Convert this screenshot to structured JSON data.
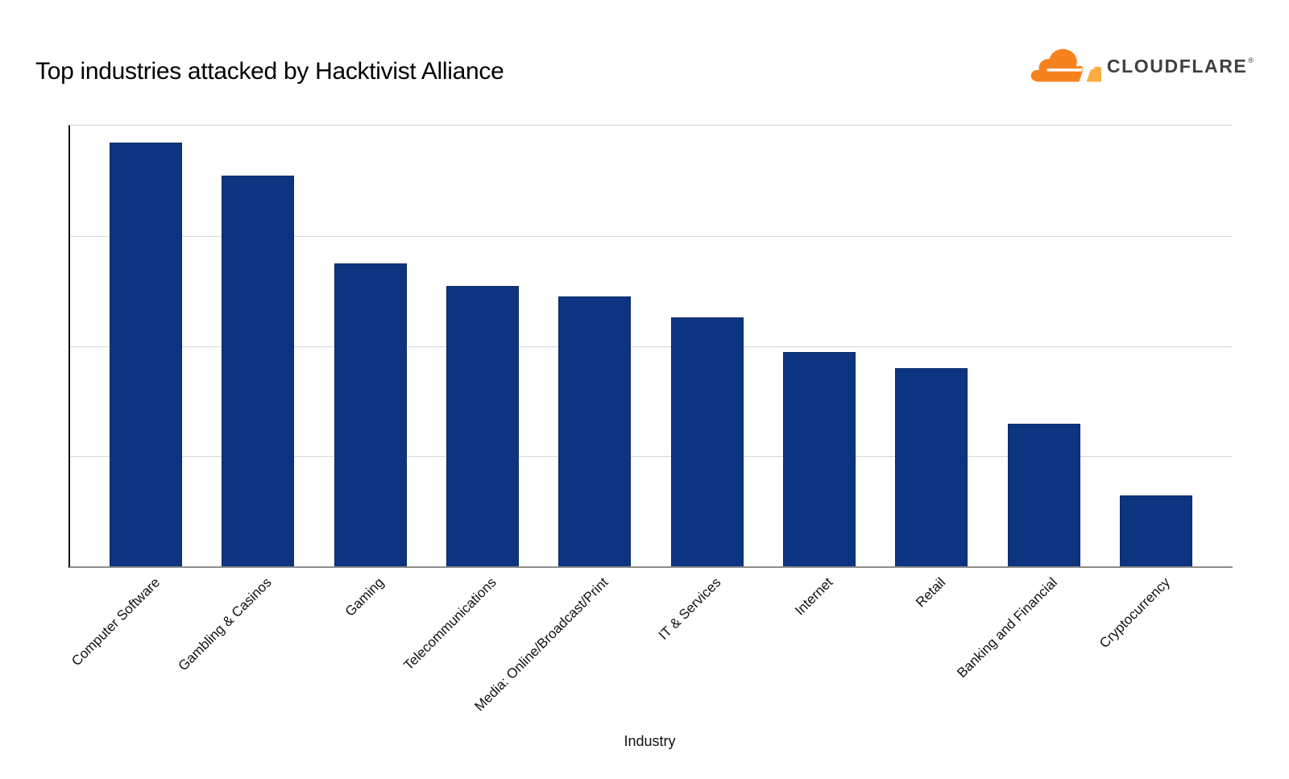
{
  "header": {
    "logo": {
      "brand": "CLOUDFLARE",
      "registered_mark": "®",
      "cloud_color": "#F6821F",
      "cloud_accent_color": "#FBAD41",
      "wordmark_color": "#404041"
    }
  },
  "chart_data": {
    "type": "bar",
    "title": "Top industries attacked by Hacktivist Alliance",
    "xlabel": "Industry",
    "ylabel": "",
    "categories": [
      "Computer Software",
      "Gambling & Casinos",
      "Gaming",
      "Telecommunications",
      "Media: Online/Broadcast/Print",
      "IT & Services",
      "Internet",
      "Retail",
      "Banking and Financial",
      "Cryptocurrency"
    ],
    "values": [
      96.2,
      88.7,
      68.8,
      63.7,
      61.2,
      56.5,
      48.6,
      45.0,
      32.4,
      16.1
    ],
    "value_units": "relative scale (percent of y-axis max; y-axis has no visible tick labels)",
    "ylim": [
      0,
      100
    ],
    "gridlines_pct": [
      25,
      50,
      75,
      100
    ],
    "legend": "none",
    "tick_label_rotation_deg": 45,
    "bar_color": "#0d3480",
    "bar_edge_color": "#0a2a66",
    "gridline_color": "#d6d6d6",
    "left_axis_color": "#141414",
    "bottom_axis_color": "#8d8d8d"
  }
}
